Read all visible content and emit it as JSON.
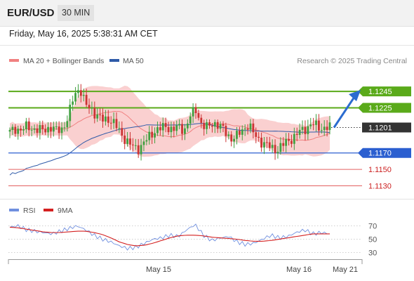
{
  "header": {
    "symbol": "EUR/USD",
    "timeframe": "30 MIN",
    "datetime": "Friday, May 16, 2025 5:38:31 AM CET"
  },
  "legend": {
    "ma20_bb": "MA 20 + Bollinger Bands",
    "ma50": "MA 50",
    "credit": "Research © 2025 Trading Central",
    "rsi": "RSI",
    "ma9": "9MA"
  },
  "colors": {
    "candle_up": "#40a040",
    "candle_down": "#cc3333",
    "bollinger_fill": "#f9c8c8",
    "ma20": "#f08080",
    "ma50": "#2e5aa8",
    "resistance": "#5aaa1a",
    "current": "#333333",
    "support_strong": "#2b5fd0",
    "support": "#e36060",
    "arrow": "#2b6cd0",
    "rsi": "#6f8fdf",
    "rsi_ma": "#d42020"
  },
  "chart_data": [
    {
      "type": "candlestick",
      "price_range": [
        1.1115,
        1.1275
      ],
      "levels": [
        {
          "value": 1.1245,
          "label": "1.1245",
          "kind": "resistance"
        },
        {
          "value": 1.1225,
          "label": "1.1225",
          "kind": "resistance"
        },
        {
          "value": 1.1201,
          "label": "1.1201",
          "kind": "current"
        },
        {
          "value": 1.117,
          "label": "1.1170",
          "kind": "support_strong"
        },
        {
          "value": 1.115,
          "label": "1.1150",
          "kind": "support"
        },
        {
          "value": 1.113,
          "label": "1.1130",
          "kind": "support"
        }
      ],
      "projection": {
        "from": 1.1201,
        "to": 1.1245
      },
      "x_labels": [
        "May 15",
        "May 16",
        "May 21"
      ],
      "key_closes": [
        1.1195,
        1.12,
        1.1198,
        1.1202,
        1.12,
        1.1197,
        1.1199,
        1.1201,
        1.1197,
        1.12,
        1.1212,
        1.124,
        1.125,
        1.1228,
        1.1224,
        1.1215,
        1.121,
        1.1212,
        1.1205,
        1.1195,
        1.1185,
        1.1178,
        1.1175,
        1.1182,
        1.119,
        1.1198,
        1.12,
        1.1202,
        1.1199,
        1.1201,
        1.1198,
        1.1215,
        1.1222,
        1.1205,
        1.12,
        1.1207,
        1.1204,
        1.1195,
        1.1188,
        1.119,
        1.1198,
        1.1205,
        1.1192,
        1.1185,
        1.118,
        1.1176,
        1.1174,
        1.118,
        1.1186,
        1.119,
        1.1197,
        1.1201,
        1.1205,
        1.1202,
        1.12,
        1.1201
      ]
    },
    {
      "type": "line",
      "title": "RSI",
      "y_ticks": [
        70,
        50,
        30
      ],
      "y_range": [
        20,
        80
      ],
      "rsi_key": [
        68,
        70,
        64,
        62,
        60,
        58,
        62,
        66,
        70,
        64,
        56,
        50,
        46,
        40,
        36,
        38,
        44,
        50,
        52,
        56,
        54,
        64,
        72,
        56,
        48,
        52,
        54,
        46,
        42,
        44,
        50,
        56,
        52,
        54,
        60,
        64,
        58,
        60,
        58
      ],
      "rsi_ma_key": [
        68,
        67,
        65,
        63,
        61,
        60,
        60,
        61,
        62,
        62,
        60,
        57,
        52,
        46,
        42,
        40,
        41,
        44,
        48,
        52,
        55,
        56,
        56,
        55,
        53,
        52,
        51,
        50,
        48,
        47,
        47,
        48,
        50,
        52,
        54,
        56,
        58,
        58,
        58
      ]
    }
  ]
}
